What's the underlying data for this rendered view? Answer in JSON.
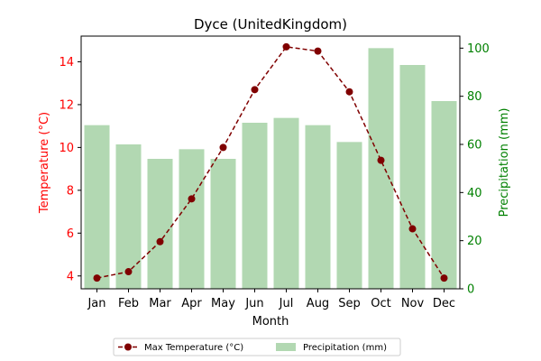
{
  "chart_data": {
    "type": "bar+line",
    "title": "Dyce (UnitedKingdom)",
    "xlabel": "Month",
    "categories": [
      "Jan",
      "Feb",
      "Mar",
      "Apr",
      "May",
      "Jun",
      "Jul",
      "Aug",
      "Sep",
      "Oct",
      "Nov",
      "Dec"
    ],
    "left_axis": {
      "label": "Temperature (°C)",
      "color": "#ff0000",
      "ylim": [
        3.4,
        15.2
      ],
      "ticks": [
        4,
        6,
        8,
        10,
        12,
        14
      ]
    },
    "right_axis": {
      "label": "Precipitation (mm)",
      "color": "#008000",
      "ylim": [
        0,
        105
      ],
      "ticks": [
        0,
        20,
        40,
        60,
        80,
        100
      ]
    },
    "series": [
      {
        "name": "Max Temperature (°C)",
        "kind": "line",
        "axis": "left",
        "color": "#800000",
        "line_style": "dashed",
        "marker": "circle",
        "values": [
          3.9,
          4.2,
          5.6,
          7.6,
          10.0,
          12.7,
          14.7,
          14.5,
          12.6,
          9.4,
          6.2,
          3.9
        ]
      },
      {
        "name": "Precipitation (mm)",
        "kind": "bar",
        "axis": "right",
        "color": "#b2d8b2",
        "values": [
          68,
          60,
          54,
          58,
          54,
          69,
          71,
          68,
          61,
          100,
          93,
          78
        ]
      }
    ],
    "grid": false,
    "legend_position": "bottom-center"
  }
}
